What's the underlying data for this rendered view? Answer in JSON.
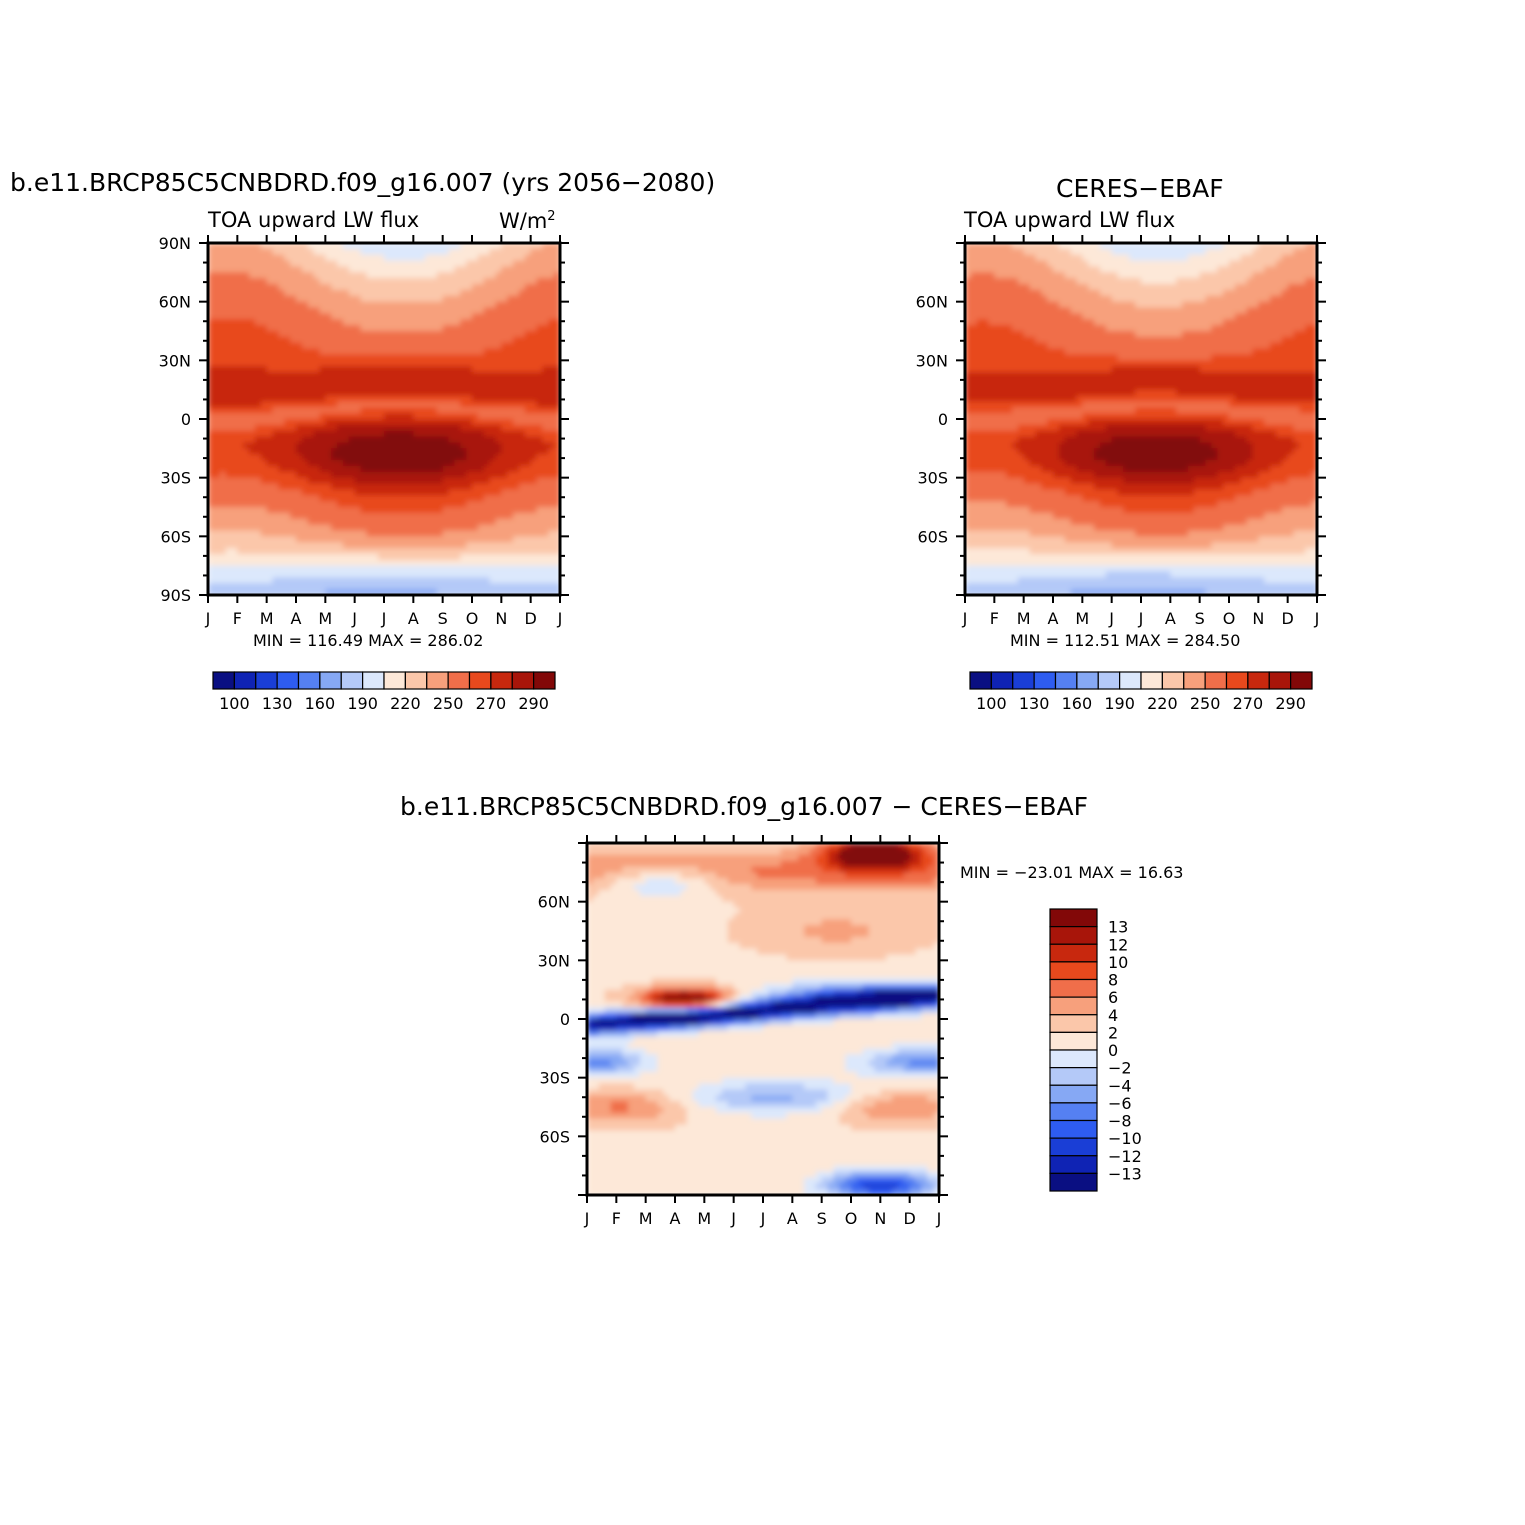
{
  "palette": [
    "#0a0f82",
    "#0f23b4",
    "#1a3ed6",
    "#2e5cf0",
    "#5580f2",
    "#86a8f4",
    "#b4c9f8",
    "#dce8fc",
    "#fde8d8",
    "#fbc7aa",
    "#f7a07c",
    "#f06e4a",
    "#e8491d",
    "#c8280e",
    "#a8150a",
    "#820808"
  ],
  "chart_data": [
    {
      "type": "heatmap",
      "title": "b.e11.BRCP85C5CNBDRD.f09_g16.007 (yrs 2056−2080)",
      "subtitle_left": "TOA upward LW flux",
      "units": "W/m",
      "units_exp": "2",
      "x_ticks": [
        "J",
        "F",
        "M",
        "A",
        "M",
        "J",
        "J",
        "A",
        "S",
        "O",
        "N",
        "D",
        "J"
      ],
      "y_ticks": [
        "90N",
        "60N",
        "30N",
        "0",
        "30S",
        "60S",
        "90S"
      ],
      "ylim": [
        -90,
        90
      ],
      "stats": "MIN = 116.49 MAX = 286.02",
      "min": 116.49,
      "max": 286.02,
      "colorbar_labels": [
        "100",
        "130",
        "160",
        "190",
        "220",
        "250",
        "270",
        "290"
      ],
      "levels": [
        100,
        110,
        120,
        130,
        145,
        160,
        175,
        190,
        205,
        220,
        235,
        250,
        260,
        270,
        280,
        290
      ],
      "field": "model"
    },
    {
      "type": "heatmap",
      "title": "CERES−EBAF",
      "subtitle_left": "TOA upward LW flux",
      "x_ticks": [
        "J",
        "F",
        "M",
        "A",
        "M",
        "J",
        "J",
        "A",
        "S",
        "O",
        "N",
        "D",
        "J"
      ],
      "y_ticks": [
        "",
        "60N",
        "30N",
        "0",
        "30S",
        "60S",
        ""
      ],
      "ylim": [
        -90,
        90
      ],
      "stats": "MIN = 112.51 MAX = 284.50",
      "min": 112.51,
      "max": 284.5,
      "colorbar_labels": [
        "100",
        "130",
        "160",
        "190",
        "220",
        "250",
        "270",
        "290"
      ],
      "levels": [
        100,
        110,
        120,
        130,
        145,
        160,
        175,
        190,
        205,
        220,
        235,
        250,
        260,
        270,
        280,
        290
      ],
      "field": "obs"
    },
    {
      "type": "heatmap",
      "title": "b.e11.BRCP85C5CNBDRD.f09_g16.007 − CERES−EBAF",
      "x_ticks": [
        "J",
        "F",
        "M",
        "A",
        "M",
        "J",
        "J",
        "A",
        "S",
        "O",
        "N",
        "D",
        "J"
      ],
      "y_ticks": [
        "",
        "60N",
        "30N",
        "0",
        "30S",
        "60S",
        ""
      ],
      "ylim": [
        -90,
        90
      ],
      "stats": "MIN = −23.01 MAX =   16.63",
      "min": -23.01,
      "max": 16.63,
      "colorbar_labels": [
        "13",
        "12",
        "10",
        "8",
        "6",
        "4",
        "2",
        "0",
        "−2",
        "−4",
        "−6",
        "−8",
        "−10",
        "−12",
        "−13"
      ],
      "levels": [
        -13,
        -12,
        -10,
        -8,
        -6,
        -4,
        -2,
        0,
        2,
        4,
        6,
        8,
        10,
        12,
        13
      ],
      "field": "diff"
    }
  ]
}
